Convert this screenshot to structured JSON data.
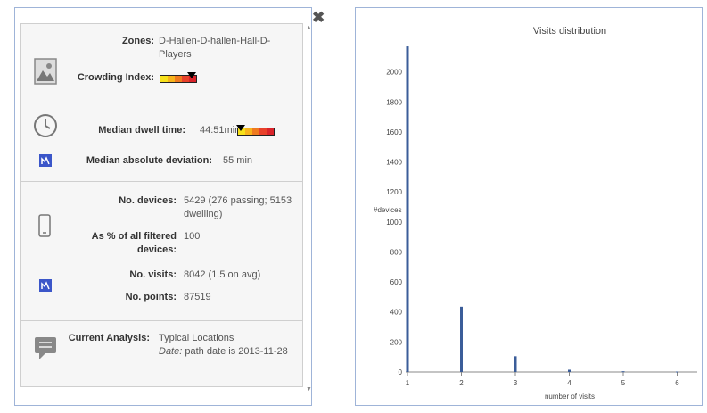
{
  "panel": {
    "close_glyph": "✖",
    "scroll_up_glyph": "▲",
    "scroll_down_glyph": "▼",
    "zones_label": "Zones:",
    "zones_value_line1": "D-Hallen-D-hallen-Hall-D-",
    "zones_value_line2": "Players",
    "crowding_label": "Crowding Index:",
    "dwell_label": "Median dwell time:",
    "dwell_value": "44:51min",
    "mad_label": "Median absolute deviation:",
    "mad_value": "55 min",
    "devices_label": "No. devices:",
    "devices_value_line1": "5429 (276 passing; 5153",
    "devices_value_line2": "dwelling)",
    "pct_label_line1": "As % of all filtered",
    "pct_label_line2": "devices:",
    "pct_value": "100",
    "visits_label": "No. visits:",
    "visits_value": "8042 (1.5 on avg)",
    "points_label": "No. points:",
    "points_value": "87519",
    "analysis_label": "Current Analysis:",
    "analysis_value": "Typical Locations",
    "analysis_date_label": "Date:",
    "analysis_date_value": "path date is 2013-11-28",
    "icons": [
      "image-icon",
      "clock-icon",
      "chart-small-icon",
      "phone-icon",
      "chart-small-icon",
      "comment-icon"
    ],
    "crowding_colors": [
      "#f7e11b",
      "#f7b31b",
      "#ef7a1f",
      "#e8412a",
      "#d9232a"
    ],
    "crowding_index_level": 0.85,
    "dwell_index_level": 0.1
  },
  "chart_data": {
    "type": "bar",
    "title": "Visits distribution",
    "xlabel": "number of visits",
    "ylabel": "#devices",
    "categories": [
      "1",
      "2",
      "3",
      "4",
      "5",
      "6"
    ],
    "x": [
      1,
      2,
      3,
      4,
      5,
      6
    ],
    "values": [
      2170,
      435,
      105,
      15,
      5,
      3
    ],
    "yticks": [
      "0",
      "200",
      "400",
      "600",
      "800",
      "1000",
      "1200",
      "1400",
      "1600",
      "1800",
      "2000"
    ],
    "ylim": [
      0,
      2200
    ],
    "grid": false,
    "bar_color": "#3b5d99"
  }
}
